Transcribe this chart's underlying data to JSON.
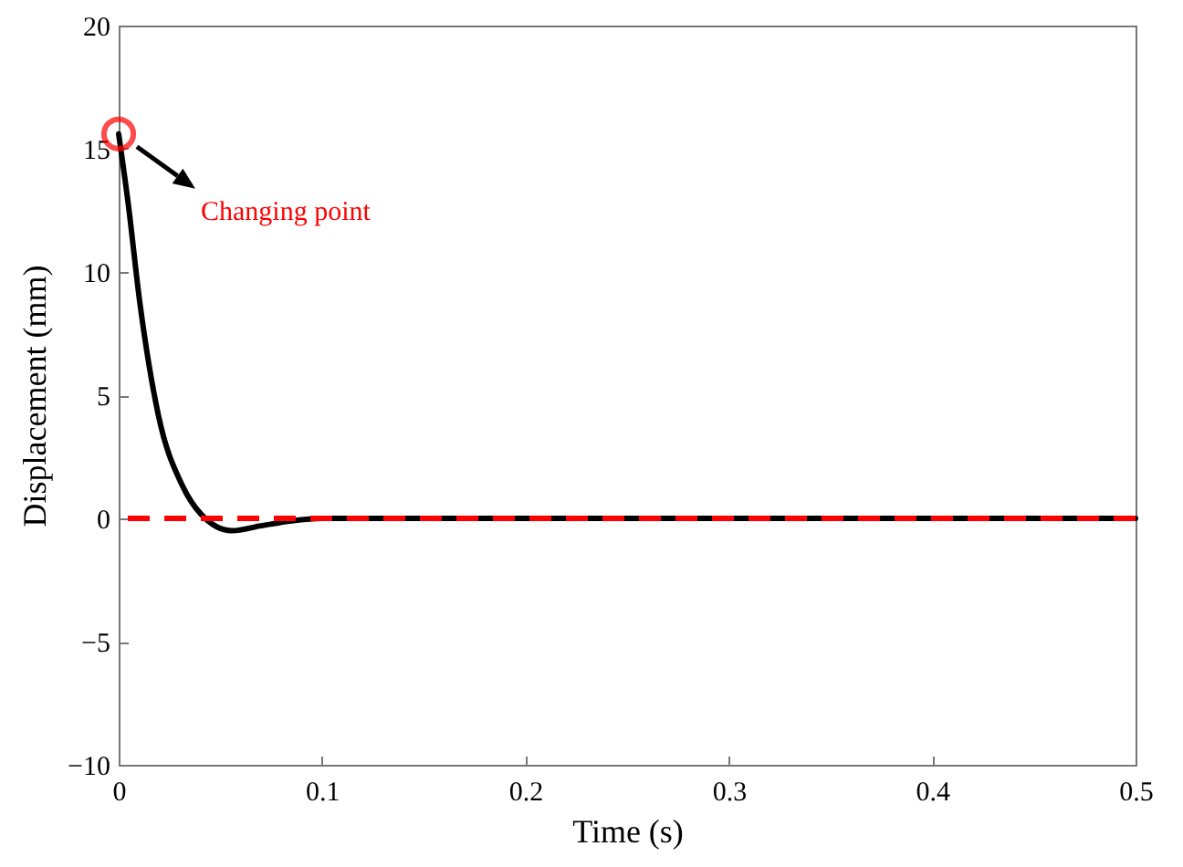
{
  "chart_data": {
    "type": "line",
    "xlabel": "Time (s)",
    "ylabel": "Displacement (mm)",
    "xlim": [
      0,
      0.5
    ],
    "xticks": [
      0,
      0.1,
      0.2,
      0.3,
      0.4,
      0.5
    ],
    "ylim": [
      -10,
      20
    ],
    "yticks": [
      -10,
      -5,
      0,
      5,
      10,
      15,
      20
    ],
    "grid": false,
    "series": [
      {
        "color": "#000000",
        "x": [
          0,
          0.0045,
          0.0105,
          0.0195,
          0.0315,
          0.0405,
          0.0555,
          0.07,
          0.085,
          0.1,
          0.12,
          0.2,
          0.3,
          0.4,
          0.5
        ],
        "values": [
          15.6,
          12.9,
          8.7,
          4.2,
          1.3,
          0.17,
          -0.5,
          -0.3,
          -0.1,
          0,
          0,
          0,
          0,
          0,
          0
        ]
      },
      {
        "type": "scatter",
        "marker": "circle",
        "color": "#ff0000",
        "x": [
          0
        ],
        "values": [
          15.6
        ]
      }
    ],
    "ref_lines": [
      {
        "axis": "y",
        "value": 0,
        "color": "#ff0000",
        "line_style": "dashed"
      }
    ],
    "annotations": [
      "Changing point"
    ]
  }
}
